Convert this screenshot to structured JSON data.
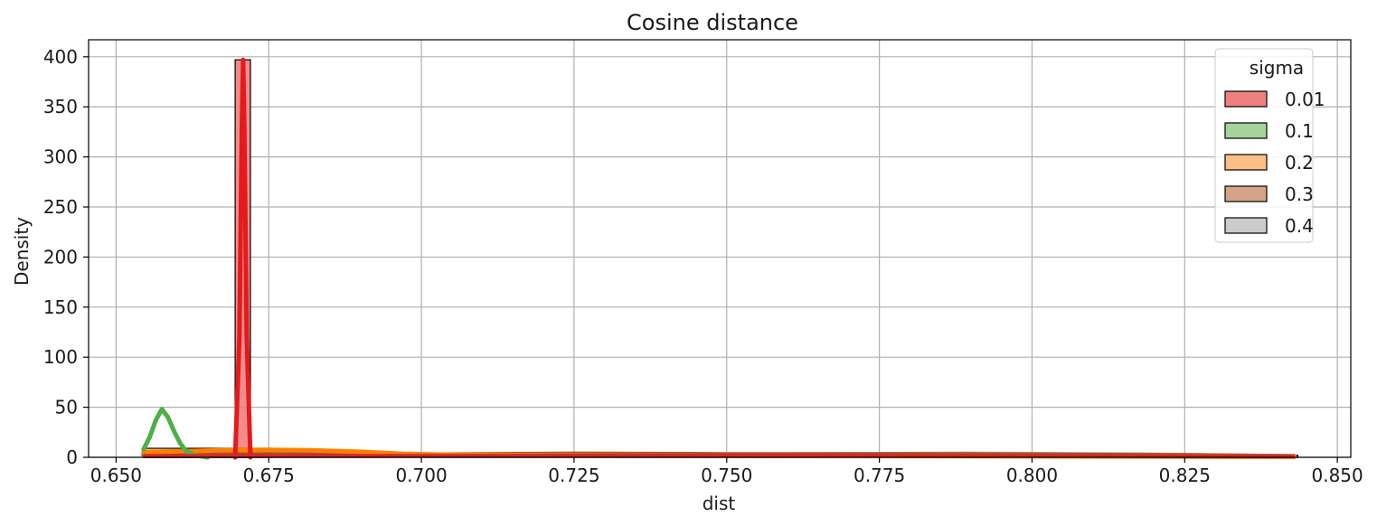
{
  "chart_data": {
    "type": "histogram_kde",
    "title": "Cosine distance",
    "xlabel": "dist",
    "ylabel": "Density",
    "xlim": [
      0.6455,
      0.8522
    ],
    "ylim": [
      0,
      417
    ],
    "xticks": [
      0.65,
      0.675,
      0.7,
      0.725,
      0.75,
      0.775,
      0.8,
      0.825,
      0.85
    ],
    "xtick_labels": [
      "0.650",
      "0.675",
      "0.700",
      "0.725",
      "0.750",
      "0.775",
      "0.800",
      "0.825",
      "0.850"
    ],
    "yticks": [
      0,
      50,
      100,
      150,
      200,
      250,
      300,
      350,
      400
    ],
    "ytick_labels": [
      "0",
      "50",
      "100",
      "150",
      "200",
      "250",
      "300",
      "350",
      "400"
    ],
    "grid": true,
    "legend": {
      "title": "sigma",
      "placement": "top-right"
    },
    "series": [
      {
        "name": "0.01",
        "fill": "#f08080",
        "line": "#e41a1c",
        "bars": [
          {
            "x0": 0.6695,
            "x1": 0.672,
            "density": 397
          }
        ],
        "kde": [
          [
            0.6695,
            0
          ],
          [
            0.6702,
            120
          ],
          [
            0.6706,
            330
          ],
          [
            0.6708,
            397
          ],
          [
            0.671,
            330
          ],
          [
            0.6714,
            120
          ],
          [
            0.672,
            0
          ]
        ]
      },
      {
        "name": "0.1",
        "fill": "#a6d49a",
        "line": "#4daf4a",
        "bars": [
          {
            "x0": 0.6545,
            "x1": 0.6705,
            "density": 5
          }
        ],
        "kde": [
          [
            0.6545,
            8
          ],
          [
            0.6555,
            20
          ],
          [
            0.6565,
            37
          ],
          [
            0.6575,
            48
          ],
          [
            0.6585,
            40
          ],
          [
            0.6595,
            26
          ],
          [
            0.6605,
            14
          ],
          [
            0.6615,
            6
          ],
          [
            0.663,
            2
          ],
          [
            0.665,
            0
          ]
        ]
      },
      {
        "name": "0.2",
        "fill": "#fdbf85",
        "line": "#ff7f00",
        "bars": [
          {
            "x0": 0.6545,
            "x1": 0.6755,
            "density": 9
          }
        ],
        "kde": [
          [
            0.6545,
            5
          ],
          [
            0.66,
            6
          ],
          [
            0.667,
            7
          ],
          [
            0.675,
            7.5
          ],
          [
            0.682,
            7
          ],
          [
            0.69,
            5.5
          ],
          [
            0.697,
            3.5
          ],
          [
            0.705,
            2.5
          ],
          [
            0.72,
            2
          ],
          [
            0.75,
            1.5
          ],
          [
            0.8,
            1
          ],
          [
            0.843,
            0.5
          ]
        ]
      },
      {
        "name": "0.3",
        "fill": "#d4a48a",
        "line": "#a65628",
        "bars": [
          {
            "x0": 0.6545,
            "x1": 0.6965,
            "density": 4
          },
          {
            "x0": 0.6965,
            "x1": 0.8435,
            "density": 2
          }
        ],
        "kde": [
          [
            0.6545,
            3
          ],
          [
            0.68,
            3
          ],
          [
            0.7,
            2.5
          ],
          [
            0.725,
            3.5
          ],
          [
            0.75,
            3
          ],
          [
            0.78,
            3
          ],
          [
            0.8,
            2.5
          ],
          [
            0.825,
            2
          ],
          [
            0.843,
            1
          ]
        ]
      },
      {
        "name": "0.4",
        "fill": "#cccccc",
        "line": "#999999",
        "bars": [
          {
            "x0": 0.6545,
            "x1": 0.6755,
            "density": 2.5
          },
          {
            "x0": 0.6755,
            "x1": 0.8435,
            "density": 2
          }
        ],
        "kde": [
          [
            0.6545,
            2
          ],
          [
            0.7,
            2
          ],
          [
            0.75,
            2.5
          ],
          [
            0.79,
            3.5
          ],
          [
            0.82,
            2.5
          ],
          [
            0.843,
            1
          ]
        ]
      }
    ],
    "overlay_line": {
      "color": "#d62728",
      "points": [
        [
          0.6545,
          1.5
        ],
        [
          0.7,
          1.5
        ],
        [
          0.75,
          2
        ],
        [
          0.8,
          1.5
        ],
        [
          0.843,
          0.8
        ]
      ]
    }
  }
}
